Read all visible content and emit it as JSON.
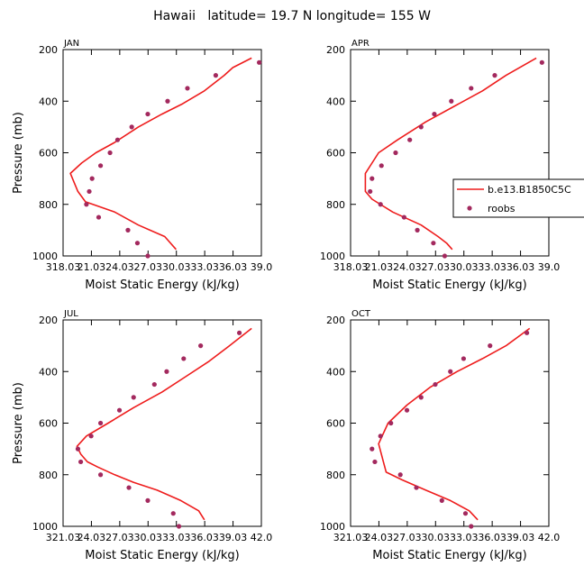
{
  "title": "Hawaii   latitude= 19.7 N longitude= 155 W",
  "colors": {
    "model": "#ee1c1c",
    "obs": "#a3295e",
    "axis": "#000000",
    "background": "#ffffff"
  },
  "legend": {
    "model": "b.e13.B1850C5C",
    "obs": "roobs",
    "placement": "right of APR panel"
  },
  "chart_data": [
    {
      "type": "line",
      "panel": "JAN",
      "xlabel": "Moist Static Energy (kJ/kg)",
      "ylabel": "Pressure (mb)",
      "xlim": [
        318.03,
        339.03
      ],
      "ylim": [
        1000,
        200
      ],
      "y_inverted": true,
      "xticks": [
        318.03,
        321.03,
        324.03,
        327.03,
        330.03,
        333.03,
        336.03,
        339.03
      ],
      "xtick_labels": [
        "318.03",
        "21.03",
        "24.03",
        "27.03",
        "30.03",
        "33.03",
        "36.03",
        "39.0"
      ],
      "yticks": [
        200,
        400,
        600,
        800,
        1000
      ],
      "series": [
        {
          "name": "b.e13.B1850C5C",
          "kind": "line",
          "x": [
            330.0,
            328.8,
            326.0,
            323.5,
            320.4,
            319.6,
            318.8,
            320.0,
            321.5,
            323.5,
            326.0,
            328.5,
            330.7,
            333.0,
            335.1,
            336.0,
            338.0
          ],
          "y": [
            975,
            925,
            880,
            830,
            790,
            750,
            680,
            640,
            600,
            560,
            500,
            450,
            410,
            360,
            300,
            270,
            233
          ]
        },
        {
          "name": "roobs",
          "kind": "scatter",
          "x": [
            327.0,
            325.9,
            324.9,
            321.8,
            320.5,
            320.8,
            321.1,
            322.0,
            323.0,
            323.8,
            325.3,
            327.0,
            329.1,
            331.2,
            334.2,
            338.8
          ],
          "y": [
            1000,
            950,
            900,
            850,
            800,
            750,
            700,
            650,
            600,
            550,
            500,
            450,
            400,
            350,
            300,
            250
          ]
        }
      ]
    },
    {
      "type": "line",
      "panel": "APR",
      "xlabel": "Moist Static Energy (kJ/kg)",
      "ylabel": "",
      "xlim": [
        318.03,
        339.03
      ],
      "ylim": [
        1000,
        200
      ],
      "y_inverted": true,
      "xticks": [
        318.03,
        321.03,
        324.03,
        327.03,
        330.03,
        333.03,
        336.03,
        339.03
      ],
      "xtick_labels": [
        "318.03",
        "21.03",
        "24.03",
        "27.03",
        "30.03",
        "33.03",
        "36.03",
        "39.0"
      ],
      "yticks": [
        200,
        400,
        600,
        800,
        1000
      ],
      "series": [
        {
          "name": "b.e13.B1850C5C",
          "kind": "line",
          "x": [
            328.8,
            328.2,
            327.3,
            325.5,
            322.5,
            320.3,
            319.6,
            319.6,
            321.0,
            323.0,
            326.0,
            329.0,
            332.0,
            334.5,
            337.7
          ],
          "y": [
            975,
            950,
            925,
            880,
            830,
            780,
            750,
            680,
            600,
            550,
            480,
            420,
            360,
            300,
            233
          ]
        },
        {
          "name": "roobs",
          "kind": "scatter",
          "x": [
            328.0,
            326.8,
            325.1,
            323.7,
            321.2,
            320.1,
            320.3,
            321.3,
            322.8,
            324.3,
            325.5,
            326.9,
            328.7,
            330.8,
            333.3,
            338.3
          ],
          "y": [
            1000,
            950,
            900,
            850,
            800,
            750,
            700,
            650,
            600,
            550,
            500,
            450,
            400,
            350,
            300,
            250
          ]
        }
      ]
    },
    {
      "type": "line",
      "panel": "JUL",
      "xlabel": "Moist Static Energy (kJ/kg)",
      "ylabel": "Pressure (mb)",
      "xlim": [
        321.03,
        342.03
      ],
      "ylim": [
        1000,
        200
      ],
      "y_inverted": true,
      "xticks": [
        321.03,
        324.03,
        327.03,
        330.03,
        333.03,
        336.03,
        339.03,
        342.03
      ],
      "xtick_labels": [
        "321.03",
        "24.03",
        "27.03",
        "30.03",
        "33.03",
        "36.03",
        "39.03",
        "42.0"
      ],
      "yticks": [
        200,
        400,
        600,
        800,
        1000
      ],
      "series": [
        {
          "name": "b.e13.B1850C5C",
          "kind": "line",
          "x": [
            336.0,
            335.4,
            333.5,
            331.0,
            328.5,
            326.5,
            324.7,
            323.6,
            322.9,
            322.5,
            323.5,
            325.8,
            328.5,
            331.5,
            334.0,
            336.5,
            339.0,
            341.0
          ],
          "y": [
            975,
            940,
            900,
            860,
            830,
            800,
            770,
            750,
            720,
            690,
            650,
            600,
            540,
            480,
            420,
            360,
            290,
            233
          ]
        },
        {
          "name": "roobs",
          "kind": "scatter",
          "x": [
            333.3,
            332.7,
            330.0,
            328.0,
            325.0,
            322.9,
            322.6,
            324.0,
            325.0,
            327.0,
            328.5,
            330.7,
            332.0,
            333.8,
            335.6,
            339.7
          ],
          "y": [
            1000,
            950,
            900,
            850,
            800,
            750,
            700,
            650,
            600,
            550,
            500,
            450,
            400,
            350,
            300,
            250
          ]
        }
      ]
    },
    {
      "type": "line",
      "panel": "OCT",
      "xlabel": "Moist Static Energy (kJ/kg)",
      "ylabel": "",
      "xlim": [
        321.03,
        342.03
      ],
      "ylim": [
        1000,
        200
      ],
      "y_inverted": true,
      "xticks": [
        321.03,
        324.03,
        327.03,
        330.03,
        333.03,
        336.03,
        339.03,
        342.03
      ],
      "xtick_labels": [
        "321.03",
        "24.03",
        "27.03",
        "30.03",
        "33.03",
        "36.03",
        "39.03",
        "42.0"
      ],
      "yticks": [
        200,
        400,
        600,
        800,
        1000
      ],
      "series": [
        {
          "name": "b.e13.B1850C5C",
          "kind": "line",
          "x": [
            334.5,
            333.6,
            331.6,
            329.0,
            326.5,
            324.8,
            324.5,
            324.0,
            325.0,
            327.0,
            329.5,
            332.3,
            335.0,
            337.5,
            340.0
          ],
          "y": [
            975,
            940,
            900,
            860,
            820,
            790,
            750,
            680,
            600,
            530,
            460,
            400,
            350,
            300,
            233
          ]
        },
        {
          "name": "roobs",
          "kind": "scatter",
          "x": [
            333.8,
            333.2,
            330.7,
            328.0,
            326.3,
            323.6,
            323.3,
            324.2,
            325.3,
            327.0,
            328.5,
            330.0,
            331.6,
            333.0,
            335.8,
            339.7
          ],
          "y": [
            1000,
            950,
            900,
            850,
            800,
            750,
            700,
            650,
            600,
            550,
            500,
            450,
            400,
            350,
            300,
            250
          ]
        }
      ]
    }
  ]
}
